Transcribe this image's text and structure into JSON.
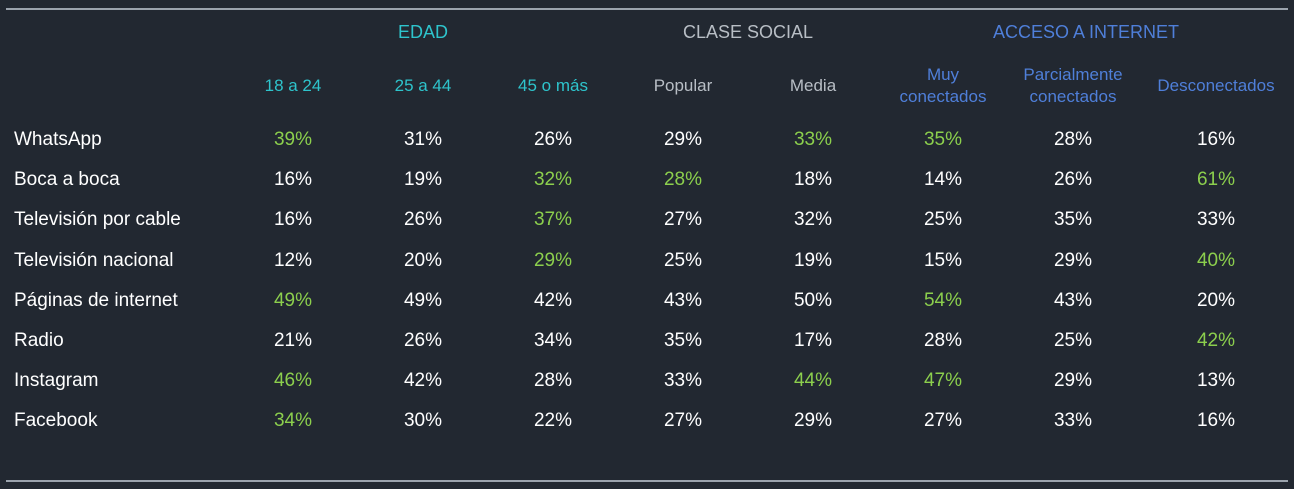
{
  "chart_data": {
    "type": "table",
    "groups": [
      {
        "label": "EDAD",
        "color": "#2ec4cc",
        "span": 3
      },
      {
        "label": "CLASE SOCIAL",
        "color": "#b8bec5",
        "span": 2
      },
      {
        "label": "ACCESO A INTERNET",
        "color": "#4f7fd9",
        "span": 3
      }
    ],
    "columns": [
      {
        "label": "18 a 24",
        "group": 0
      },
      {
        "label": "25 a 44",
        "group": 0
      },
      {
        "label": "45 o más",
        "group": 0
      },
      {
        "label": "Popular",
        "group": 1
      },
      {
        "label": "Media",
        "group": 1
      },
      {
        "label": "Muy conectados",
        "group": 2
      },
      {
        "label": "Parcialmente conectados",
        "group": 2
      },
      {
        "label": "Desconectados",
        "group": 2
      }
    ],
    "rows": [
      {
        "label": "WhatsApp",
        "values": [
          "39%",
          "31%",
          "26%",
          "29%",
          "33%",
          "35%",
          "28%",
          "16%"
        ],
        "highlight": [
          0,
          4,
          5
        ]
      },
      {
        "label": "Boca a boca",
        "values": [
          "16%",
          "19%",
          "32%",
          "28%",
          "18%",
          "14%",
          "26%",
          "61%"
        ],
        "highlight": [
          2,
          3,
          7
        ]
      },
      {
        "label": "Televisión por cable",
        "values": [
          "16%",
          "26%",
          "37%",
          "27%",
          "32%",
          "25%",
          "35%",
          "33%"
        ],
        "highlight": [
          2
        ]
      },
      {
        "label": "Televisión nacional",
        "values": [
          "12%",
          "20%",
          "29%",
          "25%",
          "19%",
          "15%",
          "29%",
          "40%"
        ],
        "highlight": [
          2,
          7
        ]
      },
      {
        "label": "Páginas de internet",
        "values": [
          "49%",
          "49%",
          "42%",
          "43%",
          "50%",
          "54%",
          "43%",
          "20%"
        ],
        "highlight": [
          0,
          5
        ]
      },
      {
        "label": "Radio",
        "values": [
          "21%",
          "26%",
          "34%",
          "35%",
          "17%",
          "28%",
          "25%",
          "42%"
        ],
        "highlight": [
          7
        ]
      },
      {
        "label": "Instagram",
        "values": [
          "46%",
          "42%",
          "28%",
          "33%",
          "44%",
          "47%",
          "29%",
          "13%"
        ],
        "highlight": [
          0,
          4,
          5
        ]
      },
      {
        "label": "Facebook",
        "values": [
          "34%",
          "30%",
          "22%",
          "27%",
          "29%",
          "27%",
          "33%",
          "16%"
        ],
        "highlight": [
          0
        ]
      }
    ],
    "highlight_color": "#8ccf4d",
    "value_color": "#ffffff",
    "background": "#222831"
  }
}
